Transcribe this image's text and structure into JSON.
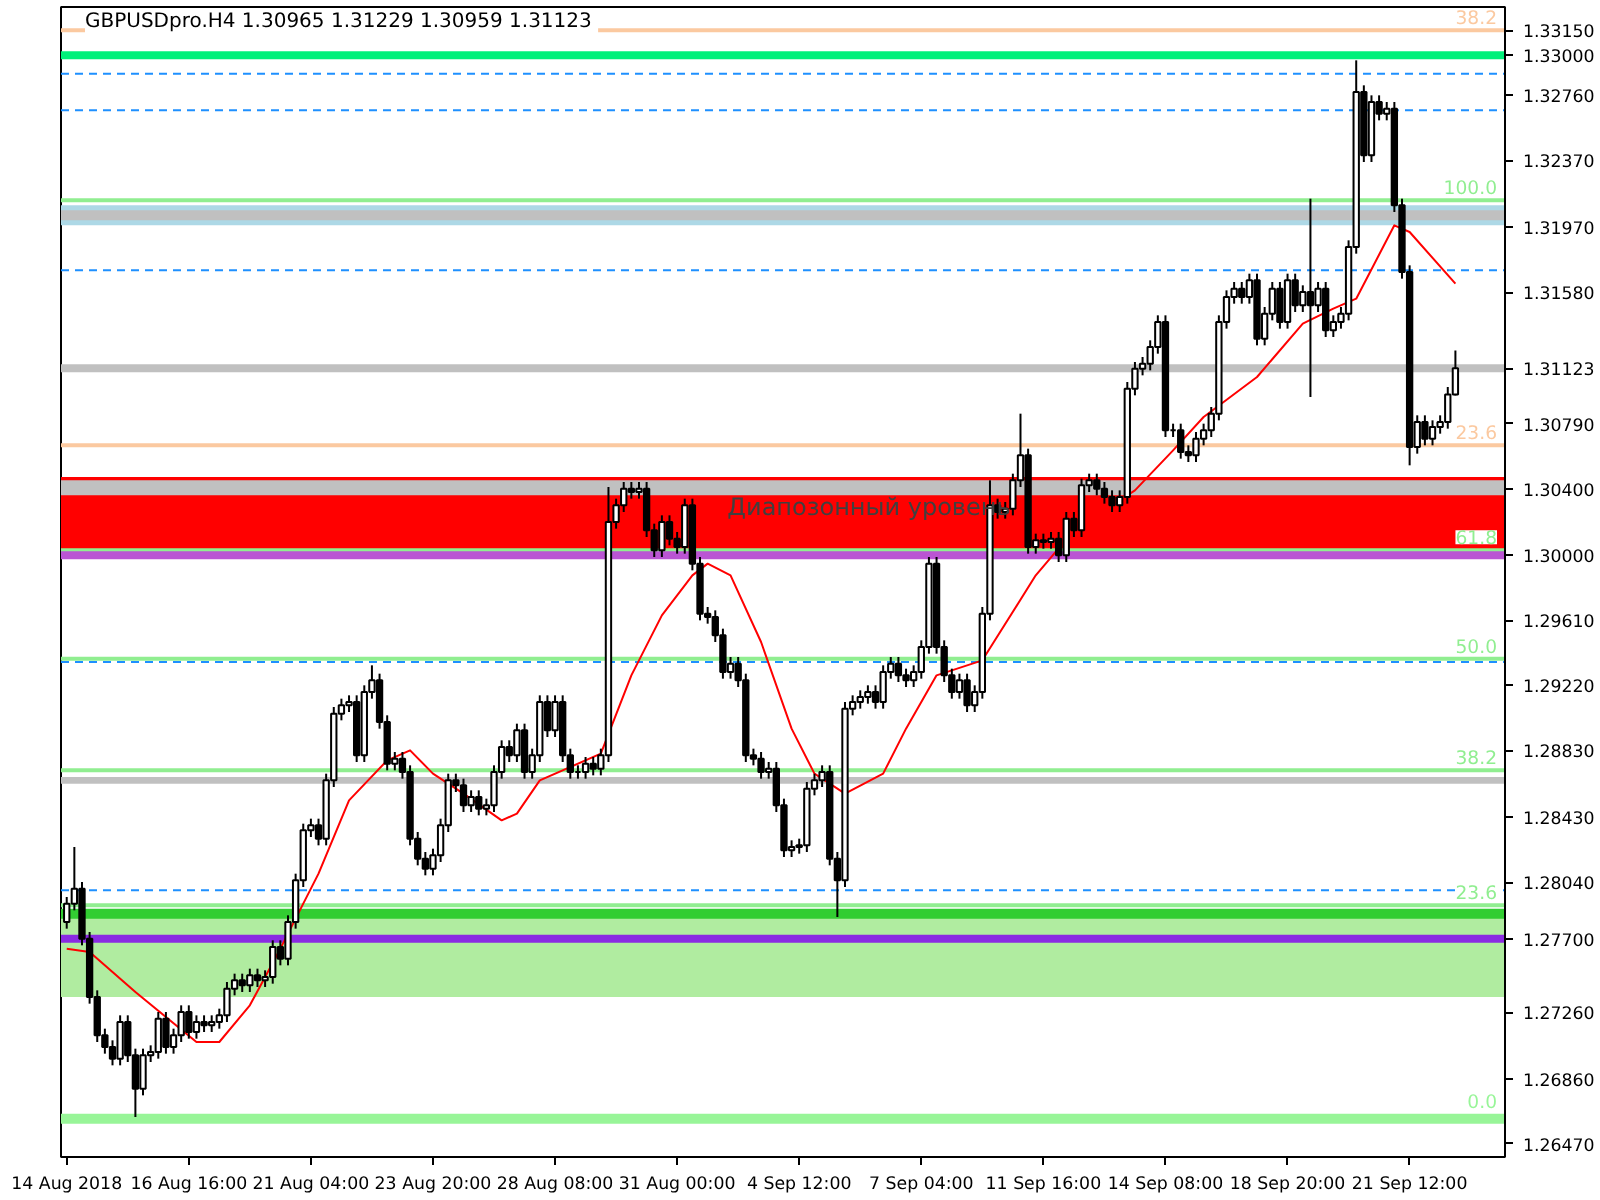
{
  "chart_data": {
    "type": "candlestick",
    "title": "GBPUSDpro.H4  1.30965 1.31229 1.30959 1.31123",
    "categories": [
      "14 Aug 2018",
      null,
      null,
      null,
      null,
      null,
      null,
      null,
      null,
      null,
      null,
      null,
      null,
      null,
      null,
      null,
      "16 Aug 16:00",
      null,
      null,
      null,
      null,
      null,
      null,
      null,
      null,
      null,
      null,
      null,
      null,
      null,
      null,
      null,
      "21 Aug 04:00",
      null,
      null,
      null,
      null,
      null,
      null,
      null,
      null,
      null,
      null,
      null,
      null,
      null,
      null,
      null,
      "23 Aug 20:00",
      null,
      null,
      null,
      null,
      null,
      null,
      null,
      null,
      null,
      null,
      null,
      null,
      null,
      null,
      null,
      "28 Aug 08:00",
      null,
      null,
      null,
      null,
      null,
      null,
      null,
      null,
      null,
      null,
      null,
      null,
      null,
      null,
      null,
      "31 Aug 00:00",
      null,
      null,
      null,
      null,
      null,
      null,
      null,
      null,
      null,
      null,
      null,
      null,
      null,
      null,
      null,
      "4 Sep 12:00",
      null,
      null,
      null,
      null,
      null,
      null,
      null,
      null,
      null,
      null,
      null,
      null,
      null,
      null,
      null,
      "7 Sep 04:00",
      null,
      null,
      null,
      null,
      null,
      null,
      null,
      null,
      null,
      null,
      null,
      null,
      null,
      null,
      null,
      "11 Sep 16:00",
      null,
      null,
      null,
      null,
      null,
      null,
      null,
      null,
      null,
      null,
      null,
      null,
      null,
      null,
      null,
      "14 Sep 08:00",
      null,
      null,
      null,
      null,
      null,
      null,
      null,
      null,
      null,
      null,
      null,
      null,
      null,
      null,
      null,
      "18 Sep 20:00",
      null,
      null,
      null,
      null,
      null,
      null,
      null,
      null,
      null,
      null,
      null,
      null,
      null,
      null,
      null,
      "21 Sep 12:00",
      null,
      null,
      null,
      null,
      null,
      null
    ],
    "ohlc": [
      [
        1.278,
        1.2795,
        1.2776,
        1.2791
      ],
      [
        1.2791,
        1.2825,
        1.2787,
        1.28
      ],
      [
        1.28,
        1.2804,
        1.2766,
        1.277
      ],
      [
        1.277,
        1.2774,
        1.2731,
        1.2735
      ],
      [
        1.2735,
        1.2739,
        1.2708,
        1.2712
      ],
      [
        1.2712,
        1.2716,
        1.2701,
        1.2705
      ],
      [
        1.2705,
        1.2709,
        1.2694,
        1.2698
      ],
      [
        1.2698,
        1.2724,
        1.2694,
        1.272
      ],
      [
        1.272,
        1.2724,
        1.2696,
        1.27
      ],
      [
        1.27,
        1.2704,
        1.2663,
        1.268
      ],
      [
        1.268,
        1.2704,
        1.2676,
        1.27
      ],
      [
        1.27,
        1.2706,
        1.2696,
        1.2702
      ],
      [
        1.2702,
        1.2726,
        1.2698,
        1.2722
      ],
      [
        1.2722,
        1.2726,
        1.2701,
        1.2705
      ],
      [
        1.2705,
        1.2716,
        1.2701,
        1.2712
      ],
      [
        1.2712,
        1.273,
        1.2708,
        1.2726
      ],
      [
        1.2726,
        1.273,
        1.271,
        1.2714
      ],
      [
        1.2714,
        1.2724,
        1.271,
        1.272
      ],
      [
        1.272,
        1.2724,
        1.2714,
        1.2718
      ],
      [
        1.2718,
        1.2724,
        1.2714,
        1.272
      ],
      [
        1.272,
        1.2728,
        1.2716,
        1.2724
      ],
      [
        1.2724,
        1.2744,
        1.272,
        1.274
      ],
      [
        1.274,
        1.2749,
        1.2736,
        1.2745
      ],
      [
        1.2745,
        1.2749,
        1.2738,
        1.2742
      ],
      [
        1.2742,
        1.2752,
        1.2738,
        1.2748
      ],
      [
        1.2748,
        1.2752,
        1.2741,
        1.2745
      ],
      [
        1.2745,
        1.2751,
        1.2741,
        1.2747
      ],
      [
        1.2747,
        1.2769,
        1.2743,
        1.2765
      ],
      [
        1.2765,
        1.2769,
        1.2754,
        1.2758
      ],
      [
        1.2758,
        1.2784,
        1.2754,
        1.278
      ],
      [
        1.278,
        1.2809,
        1.2776,
        1.2805
      ],
      [
        1.2805,
        1.2839,
        1.2801,
        1.2835
      ],
      [
        1.2835,
        1.2842,
        1.2831,
        1.2838
      ],
      [
        1.2838,
        1.2842,
        1.2826,
        1.283
      ],
      [
        1.283,
        1.2869,
        1.2826,
        1.2865
      ],
      [
        1.2865,
        1.2909,
        1.2861,
        1.2905
      ],
      [
        1.2905,
        1.2914,
        1.2901,
        1.291
      ],
      [
        1.291,
        1.2916,
        1.2906,
        1.2912
      ],
      [
        1.2912,
        1.2916,
        1.2876,
        1.288
      ],
      [
        1.288,
        1.2922,
        1.2876,
        1.2918
      ],
      [
        1.2918,
        1.2934,
        1.2914,
        1.2925
      ],
      [
        1.2925,
        1.2929,
        1.2896,
        1.29
      ],
      [
        1.29,
        1.2904,
        1.2871,
        1.2875
      ],
      [
        1.2875,
        1.2882,
        1.2871,
        1.2878
      ],
      [
        1.2878,
        1.2882,
        1.2866,
        1.287
      ],
      [
        1.287,
        1.2874,
        1.2826,
        1.283
      ],
      [
        1.283,
        1.2834,
        1.2814,
        1.2818
      ],
      [
        1.2818,
        1.2822,
        1.2808,
        1.2812
      ],
      [
        1.2812,
        1.2824,
        1.2808,
        1.282
      ],
      [
        1.282,
        1.2842,
        1.2816,
        1.2838
      ],
      [
        1.2838,
        1.2869,
        1.2834,
        1.2865
      ],
      [
        1.2865,
        1.2869,
        1.2858,
        1.2862
      ],
      [
        1.2862,
        1.2866,
        1.2846,
        1.285
      ],
      [
        1.285,
        1.2859,
        1.2846,
        1.2855
      ],
      [
        1.2855,
        1.2859,
        1.2844,
        1.2848
      ],
      [
        1.2848,
        1.2854,
        1.2844,
        1.285
      ],
      [
        1.285,
        1.2874,
        1.2846,
        1.287
      ],
      [
        1.287,
        1.2889,
        1.2866,
        1.2885
      ],
      [
        1.2885,
        1.2889,
        1.2876,
        1.288
      ],
      [
        1.288,
        1.2899,
        1.2876,
        1.2895
      ],
      [
        1.2895,
        1.2899,
        1.2866,
        1.287
      ],
      [
        1.287,
        1.2884,
        1.2866,
        1.288
      ],
      [
        1.288,
        1.2916,
        1.2876,
        1.2912
      ],
      [
        1.2912,
        1.2916,
        1.2891,
        1.2895
      ],
      [
        1.2895,
        1.2916,
        1.2891,
        1.2912
      ],
      [
        1.2912,
        1.2916,
        1.2876,
        1.288
      ],
      [
        1.288,
        1.2884,
        1.2866,
        1.287
      ],
      [
        1.287,
        1.2874,
        1.2866,
        1.287
      ],
      [
        1.287,
        1.2879,
        1.2866,
        1.2875
      ],
      [
        1.2875,
        1.2879,
        1.2868,
        1.2872
      ],
      [
        1.2872,
        1.2884,
        1.2868,
        1.288
      ],
      [
        1.288,
        1.3041,
        1.2876,
        1.302
      ],
      [
        1.302,
        1.3034,
        1.3016,
        1.303
      ],
      [
        1.303,
        1.3044,
        1.3026,
        1.304
      ],
      [
        1.304,
        1.3044,
        1.3034,
        1.3038
      ],
      [
        1.3038,
        1.3044,
        1.3034,
        1.304
      ],
      [
        1.304,
        1.3044,
        1.3011,
        1.3015
      ],
      [
        1.3015,
        1.3019,
        1.2999,
        1.3003
      ],
      [
        1.3003,
        1.3024,
        1.2999,
        1.302
      ],
      [
        1.302,
        1.3024,
        1.3006,
        1.301
      ],
      [
        1.301,
        1.3014,
        1.3001,
        1.3005
      ],
      [
        1.3005,
        1.3034,
        1.3001,
        1.303
      ],
      [
        1.303,
        1.3034,
        1.2991,
        1.2995
      ],
      [
        1.2995,
        1.2999,
        1.2961,
        1.2965
      ],
      [
        1.2965,
        1.2969,
        1.2959,
        1.2963
      ],
      [
        1.2963,
        1.2967,
        1.2948,
        1.2952
      ],
      [
        1.2952,
        1.2956,
        1.2926,
        1.293
      ],
      [
        1.293,
        1.2939,
        1.2926,
        1.2935
      ],
      [
        1.2935,
        1.2939,
        1.2921,
        1.2925
      ],
      [
        1.2925,
        1.2929,
        1.2876,
        1.288
      ],
      [
        1.288,
        1.2884,
        1.2874,
        1.2878
      ],
      [
        1.2878,
        1.2882,
        1.2866,
        1.287
      ],
      [
        1.287,
        1.2876,
        1.2866,
        1.2872
      ],
      [
        1.2872,
        1.2876,
        1.2846,
        1.285
      ],
      [
        1.285,
        1.2854,
        1.2819,
        1.2823
      ],
      [
        1.2823,
        1.2829,
        1.2819,
        1.2825
      ],
      [
        1.2825,
        1.283,
        1.2821,
        1.2826
      ],
      [
        1.2826,
        1.2864,
        1.2822,
        1.286
      ],
      [
        1.286,
        1.2869,
        1.2856,
        1.2865
      ],
      [
        1.2865,
        1.2874,
        1.2861,
        1.287
      ],
      [
        1.287,
        1.2874,
        1.2814,
        1.2818
      ],
      [
        1.2818,
        1.2822,
        1.2783,
        1.2805
      ],
      [
        1.2805,
        1.2912,
        1.2801,
        1.2908
      ],
      [
        1.2908,
        1.2916,
        1.2904,
        1.2912
      ],
      [
        1.2912,
        1.2919,
        1.2908,
        1.2915
      ],
      [
        1.2915,
        1.2922,
        1.2911,
        1.2918
      ],
      [
        1.2918,
        1.2922,
        1.2908,
        1.2912
      ],
      [
        1.2912,
        1.2934,
        1.2908,
        1.293
      ],
      [
        1.293,
        1.2939,
        1.2926,
        1.2935
      ],
      [
        1.2935,
        1.2939,
        1.2924,
        1.2928
      ],
      [
        1.2928,
        1.2932,
        1.2921,
        1.2925
      ],
      [
        1.2925,
        1.2934,
        1.2921,
        1.293
      ],
      [
        1.293,
        1.2949,
        1.2926,
        1.2945
      ],
      [
        1.2945,
        1.2999,
        1.2941,
        1.2995
      ],
      [
        1.2995,
        1.2999,
        1.2941,
        1.2945
      ],
      [
        1.2945,
        1.2949,
        1.2924,
        1.2928
      ],
      [
        1.2928,
        1.2932,
        1.2914,
        1.2918
      ],
      [
        1.2918,
        1.2929,
        1.2914,
        1.2925
      ],
      [
        1.2925,
        1.2929,
        1.2906,
        1.291
      ],
      [
        1.291,
        1.2922,
        1.2906,
        1.2918
      ],
      [
        1.2918,
        1.2969,
        1.2914,
        1.2965
      ],
      [
        1.2965,
        1.3045,
        1.2961,
        1.303
      ],
      [
        1.303,
        1.3034,
        1.3022,
        1.3026
      ],
      [
        1.3026,
        1.3032,
        1.3022,
        1.3028
      ],
      [
        1.3028,
        1.3049,
        1.3024,
        1.3045
      ],
      [
        1.3045,
        1.3085,
        1.3041,
        1.306
      ],
      [
        1.306,
        1.3064,
        1.3001,
        1.3005
      ],
      [
        1.3005,
        1.3013,
        1.3001,
        1.3009
      ],
      [
        1.3009,
        1.3013,
        1.3004,
        1.3008
      ],
      [
        1.3008,
        1.3014,
        1.3004,
        1.301
      ],
      [
        1.301,
        1.3014,
        1.2996,
        1.3
      ],
      [
        1.3,
        1.3026,
        1.2996,
        1.3022
      ],
      [
        1.3022,
        1.3026,
        1.3011,
        1.3015
      ],
      [
        1.3015,
        1.3046,
        1.3011,
        1.3042
      ],
      [
        1.3042,
        1.3049,
        1.3038,
        1.3045
      ],
      [
        1.3045,
        1.3049,
        1.3036,
        1.304
      ],
      [
        1.304,
        1.3044,
        1.3031,
        1.3035
      ],
      [
        1.3035,
        1.3039,
        1.3026,
        1.303
      ],
      [
        1.303,
        1.3039,
        1.3026,
        1.3035
      ],
      [
        1.3035,
        1.3104,
        1.3031,
        1.31
      ],
      [
        1.31,
        1.3116,
        1.3096,
        1.3112
      ],
      [
        1.3112,
        1.3119,
        1.3108,
        1.3115
      ],
      [
        1.3115,
        1.3129,
        1.3111,
        1.3125
      ],
      [
        1.3125,
        1.3144,
        1.3121,
        1.314
      ],
      [
        1.314,
        1.3144,
        1.3071,
        1.3075
      ],
      [
        1.3075,
        1.3079,
        1.3071,
        1.3075
      ],
      [
        1.3075,
        1.3079,
        1.3058,
        1.3062
      ],
      [
        1.3062,
        1.3066,
        1.3056,
        1.306
      ],
      [
        1.306,
        1.3074,
        1.3056,
        1.307
      ],
      [
        1.307,
        1.3079,
        1.3066,
        1.3075
      ],
      [
        1.3075,
        1.3089,
        1.3071,
        1.3085
      ],
      [
        1.3085,
        1.3144,
        1.3081,
        1.314
      ],
      [
        1.314,
        1.3159,
        1.3136,
        1.3155
      ],
      [
        1.3155,
        1.3164,
        1.3151,
        1.316
      ],
      [
        1.316,
        1.3164,
        1.3151,
        1.3155
      ],
      [
        1.3155,
        1.3169,
        1.3151,
        1.3165
      ],
      [
        1.3165,
        1.3169,
        1.3126,
        1.313
      ],
      [
        1.313,
        1.3149,
        1.3126,
        1.3145
      ],
      [
        1.3145,
        1.3164,
        1.3141,
        1.316
      ],
      [
        1.316,
        1.3164,
        1.3136,
        1.314
      ],
      [
        1.314,
        1.3169,
        1.3136,
        1.3165
      ],
      [
        1.3165,
        1.3169,
        1.3146,
        1.315
      ],
      [
        1.315,
        1.3162,
        1.3146,
        1.3158
      ],
      [
        1.3158,
        1.3214,
        1.3095,
        1.315
      ],
      [
        1.315,
        1.3164,
        1.3146,
        1.316
      ],
      [
        1.316,
        1.3164,
        1.3131,
        1.3135
      ],
      [
        1.3135,
        1.3144,
        1.3131,
        1.314
      ],
      [
        1.314,
        1.3149,
        1.3136,
        1.3145
      ],
      [
        1.3145,
        1.3189,
        1.3141,
        1.3185
      ],
      [
        1.3185,
        1.3297,
        1.3181,
        1.3278
      ],
      [
        1.3278,
        1.3282,
        1.3236,
        1.324
      ],
      [
        1.324,
        1.3276,
        1.3236,
        1.3272
      ],
      [
        1.3272,
        1.3276,
        1.3261,
        1.3265
      ],
      [
        1.3265,
        1.3272,
        1.3261,
        1.3268
      ],
      [
        1.3268,
        1.3272,
        1.3206,
        1.321
      ],
      [
        1.321,
        1.3214,
        1.3166,
        1.317
      ],
      [
        1.317,
        1.3174,
        1.3054,
        1.3065
      ],
      [
        1.3065,
        1.3084,
        1.3061,
        1.308
      ],
      [
        1.308,
        1.3084,
        1.3066,
        1.307
      ],
      [
        1.307,
        1.3081,
        1.3066,
        1.3077
      ],
      [
        1.3077,
        1.3084,
        1.3073,
        1.308
      ],
      [
        1.308,
        1.3101,
        1.3076,
        1.30965
      ],
      [
        1.30965,
        1.31229,
        1.30959,
        1.31123
      ]
    ],
    "series": [
      {
        "type": "line",
        "color": "#ff0000",
        "values": [
          1.2764,
          null,
          null,
          1.2762,
          null,
          null,
          null,
          null,
          null,
          1.2738,
          null,
          null,
          null,
          null,
          null,
          null,
          null,
          1.2708,
          null,
          null,
          1.2708,
          null,
          null,
          null,
          1.273,
          null,
          null,
          null,
          1.2764,
          null,
          null,
          null,
          null,
          1.2809,
          null,
          null,
          null,
          1.2853,
          null,
          null,
          null,
          null,
          1.2877,
          null,
          null,
          1.2883,
          null,
          null,
          1.2869,
          null,
          null,
          null,
          1.2857,
          null,
          null,
          null,
          null,
          1.2841,
          null,
          1.2845,
          null,
          null,
          1.2865,
          null,
          null,
          null,
          null,
          null,
          null,
          null,
          1.2881,
          null,
          null,
          null,
          1.2928,
          null,
          null,
          null,
          1.2964,
          null,
          null,
          null,
          1.2988,
          null,
          1.2995,
          null,
          null,
          1.2988,
          null,
          null,
          null,
          1.2948,
          null,
          null,
          null,
          1.2896,
          null,
          null,
          1.2869,
          null,
          null,
          null,
          1.2857,
          null,
          null,
          null,
          null,
          1.2869,
          null,
          null,
          1.2896,
          null,
          null,
          null,
          1.2928,
          null,
          null,
          null,
          null,
          null,
          1.2937,
          null,
          null,
          null,
          null,
          null,
          null,
          1.2988,
          null,
          null,
          null,
          null,
          1.3015,
          null,
          null,
          null,
          null,
          null,
          null,
          null,
          1.3039,
          null,
          null,
          null,
          null,
          1.3063,
          null,
          null,
          null,
          1.3083,
          null,
          null,
          null,
          null,
          null,
          null,
          1.3107,
          null,
          null,
          null,
          null,
          null,
          1.3139,
          null,
          null,
          null,
          1.3148,
          null,
          null,
          1.3154,
          null,
          null,
          null,
          null,
          1.3198,
          null,
          1.3194,
          null,
          null,
          null,
          null,
          null,
          1.3163
        ]
      }
    ],
    "ylim": [
      1.2639,
      1.3329
    ],
    "yticks": [
      {
        "value": 1.3315,
        "label": "1.33150"
      },
      {
        "value": 1.3276,
        "label": "1.32760"
      },
      {
        "value": 1.3237,
        "label": "1.32370"
      },
      {
        "value": 1.3197,
        "label": "1.31970"
      },
      {
        "value": 1.3158,
        "label": "1.31580"
      },
      {
        "value": 1.3079,
        "label": "1.30790"
      },
      {
        "value": 1.304,
        "label": "1.30400"
      },
      {
        "value": 1.2961,
        "label": "1.29610"
      },
      {
        "value": 1.2922,
        "label": "1.29220"
      },
      {
        "value": 1.2883,
        "label": "1.28830"
      },
      {
        "value": 1.2843,
        "label": "1.28430"
      },
      {
        "value": 1.2804,
        "label": "1.28040"
      },
      {
        "value": 1.2726,
        "label": "1.27260"
      },
      {
        "value": 1.2686,
        "label": "1.26860"
      },
      {
        "value": 1.2647,
        "label": "1.26470"
      }
    ],
    "bands": [
      {
        "axis": "y",
        "from": 1.2735,
        "to": 1.2785,
        "color": "#b0eca0"
      },
      {
        "axis": "y",
        "from": 1.3198,
        "to": 1.321,
        "color": "#add8e6"
      },
      {
        "axis": "y",
        "from": 1.3201,
        "to": 1.3207,
        "color": "#c0c0c0"
      },
      {
        "axis": "y",
        "from": 1.3002,
        "to": 1.3047,
        "color": "#ff0000",
        "label": "Диапозонный уровень"
      },
      {
        "axis": "y",
        "from": 1.3036,
        "to": 1.3045,
        "color": "#c0c0c0"
      },
      {
        "axis": "y",
        "from": 1.2863,
        "to": 1.2867,
        "color": "#c0c0c0"
      },
      {
        "axis": "y",
        "from": 1.2782,
        "to": 1.2788,
        "color": "#32cd32"
      },
      {
        "axis": "y",
        "from": 1.2659,
        "to": 1.2665,
        "color": "#98f598"
      }
    ],
    "ref_lines": [
      {
        "axis": "y",
        "value": 1.3315,
        "color": "#fbc9a0"
      },
      {
        "axis": "y",
        "value": 1.33,
        "color": "#00f07a",
        "label": "1.33000"
      },
      {
        "axis": "y",
        "value": 1.3289,
        "color": "#1e90ff",
        "line_style": "dashed"
      },
      {
        "axis": "y",
        "value": 1.3267,
        "color": "#1e90ff",
        "line_style": "dashed"
      },
      {
        "axis": "y",
        "value": 1.3213,
        "color": "#90ee90"
      },
      {
        "axis": "y",
        "value": 1.3171,
        "color": "#1e90ff",
        "line_style": "dashed"
      },
      {
        "axis": "y",
        "value": 1.31123,
        "color": "#c0c0c0",
        "label": "1.31123"
      },
      {
        "axis": "y",
        "value": 1.3066,
        "color": "#fbc9a0"
      },
      {
        "axis": "y",
        "value": 1.3003,
        "color": "#90ee90"
      },
      {
        "axis": "y",
        "value": 1.3,
        "color": "#ba55d3",
        "label": "1.30000"
      },
      {
        "axis": "y",
        "value": 1.2938,
        "color": "#90ee90"
      },
      {
        "axis": "y",
        "value": 1.2936,
        "color": "#1e90ff",
        "line_style": "dashed"
      },
      {
        "axis": "y",
        "value": 1.2871,
        "color": "#90ee90"
      },
      {
        "axis": "y",
        "value": 1.2799,
        "color": "#1e90ff",
        "line_style": "dashed"
      },
      {
        "axis": "y",
        "value": 1.279,
        "color": "#90ee90"
      },
      {
        "axis": "y",
        "value": 1.277,
        "color": "#8a2be2",
        "label": "1.27700"
      }
    ],
    "annotations": [
      {
        "text": "38.2",
        "y": 1.3315
      },
      {
        "text": "100.0",
        "y": 1.3213
      },
      {
        "text": "23.6",
        "y": 1.3066
      },
      {
        "text": "61.8",
        "y": 1.3003
      },
      {
        "text": "50.0",
        "y": 1.2938
      },
      {
        "text": "38.2",
        "y": 1.2871
      },
      {
        "text": "23.6",
        "y": 1.279
      },
      {
        "text": "0.0",
        "y": 1.2665
      }
    ]
  }
}
